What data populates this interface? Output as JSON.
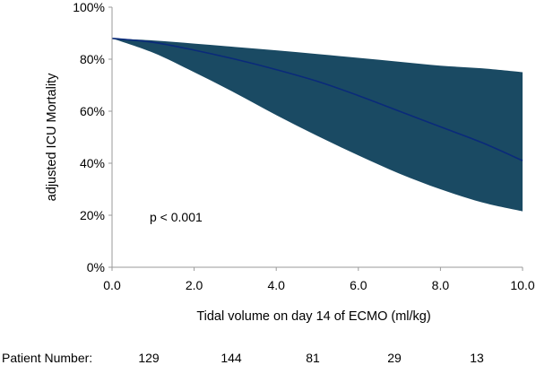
{
  "chart_data": {
    "type": "area",
    "title": "",
    "xlabel": "Tidal volume on day 14 of ECMO (ml/kg)",
    "ylabel": "adjusted ICU Mortality",
    "xlim": [
      0,
      10
    ],
    "ylim": [
      0,
      100
    ],
    "x_ticks": [
      "0.0",
      "2.0",
      "4.0",
      "6.0",
      "8.0",
      "10.0"
    ],
    "y_ticks": [
      "0%",
      "20%",
      "40%",
      "60%",
      "80%",
      "100%"
    ],
    "grid": false,
    "legend": "none",
    "colors": {
      "band": "#1a4a63",
      "line": "#0a2a7a",
      "axis": "#9a9a9a"
    },
    "series": [
      {
        "role": "estimate",
        "x": [
          0,
          1,
          2,
          3,
          4,
          5,
          6,
          7,
          8,
          9,
          10
        ],
        "y": [
          88,
          86.5,
          83.5,
          80,
          76,
          71.5,
          66,
          60,
          54,
          48,
          41
        ]
      },
      {
        "role": "ci_upper",
        "x": [
          0,
          1,
          2,
          3,
          4,
          5,
          6,
          7,
          8,
          9,
          10
        ],
        "y": [
          88,
          87.2,
          86,
          84.7,
          83.4,
          82,
          80.5,
          79,
          77.5,
          76.5,
          75
        ]
      },
      {
        "role": "ci_lower",
        "x": [
          0,
          1,
          2,
          3,
          4,
          5,
          6,
          7,
          8,
          9,
          10
        ],
        "y": [
          88,
          82.5,
          75,
          67,
          58.5,
          50.5,
          43,
          36,
          30,
          25,
          21.5
        ]
      }
    ],
    "annotations": [
      "p < 0.001"
    ]
  },
  "patient_numbers": {
    "label": "Patient Number:",
    "values": [
      "129",
      "144",
      "81",
      "29",
      "13"
    ]
  }
}
